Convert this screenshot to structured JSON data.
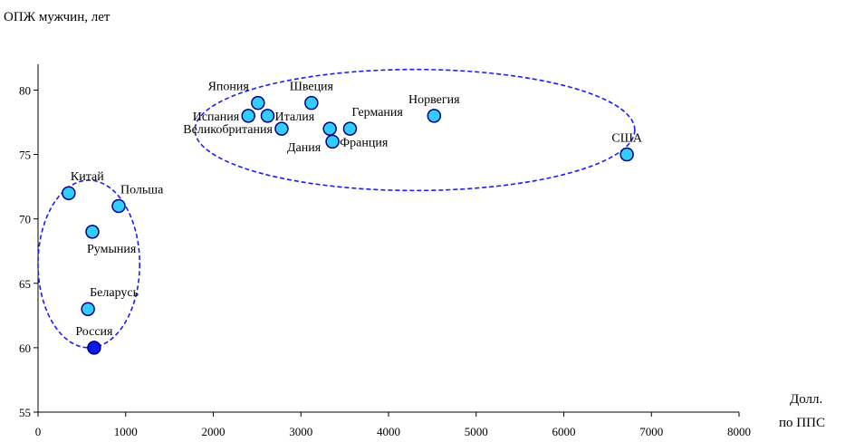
{
  "chart_data": {
    "type": "scatter",
    "title": "",
    "ylabel": "ОПЖ мужчин, лет",
    "xlabel_lines": [
      "Долл.",
      "по ППС"
    ],
    "xlim": [
      0,
      8000
    ],
    "ylim": [
      55,
      82
    ],
    "xticks": [
      0,
      1000,
      2000,
      3000,
      4000,
      5000,
      6000,
      7000,
      8000
    ],
    "yticks": [
      55,
      60,
      65,
      70,
      75,
      80
    ],
    "grid": false,
    "legend": "none",
    "colors": {
      "point_fill": "#33ccff",
      "highlight_fill": "#0a1be6",
      "point_stroke": "#00007a",
      "ellipse_stroke": "#1a1aff",
      "axis": "#000000"
    },
    "points": [
      {
        "label": "Китай",
        "x": 350,
        "y": 72,
        "label_pos": "above-right"
      },
      {
        "label": "Польша",
        "x": 920,
        "y": 71,
        "label_pos": "above-right"
      },
      {
        "label": "Румыния",
        "x": 620,
        "y": 69,
        "label_pos": "below"
      },
      {
        "label": "Беларусь",
        "x": 570,
        "y": 63,
        "label_pos": "above-right"
      },
      {
        "label": "Россия",
        "x": 640,
        "y": 60,
        "label_pos": "above",
        "highlight": true
      },
      {
        "label": "Япония",
        "x": 2510,
        "y": 79,
        "label_pos": "above-left"
      },
      {
        "label": "Испания",
        "x": 2400,
        "y": 78,
        "label_pos": "left"
      },
      {
        "label": "Италия",
        "x": 2620,
        "y": 78,
        "label_pos": "right"
      },
      {
        "label": "Великобритания",
        "x": 2780,
        "y": 77,
        "label_pos": "left"
      },
      {
        "label": "Швеция",
        "x": 3120,
        "y": 79,
        "label_pos": "above"
      },
      {
        "label": "Германия",
        "x": 3560,
        "y": 77,
        "label_pos": "above-right"
      },
      {
        "label": "Дания",
        "x": 3330,
        "y": 77,
        "label_pos": "none"
      },
      {
        "label": "Франция",
        "x": 3360,
        "y": 76,
        "label_pos": "right"
      },
      {
        "label": "Норвегия",
        "x": 4520,
        "y": 78,
        "label_pos": "above"
      },
      {
        "label": "США",
        "x": 6720,
        "y": 75,
        "label_pos": "above"
      }
    ],
    "extra_labels": [
      {
        "text": "Дания",
        "x": 2780,
        "y": 75.6
      }
    ],
    "ellipses": [
      {
        "cx": 580,
        "cy": 66.5,
        "rx": 580,
        "ry": 6.5
      },
      {
        "cx": 4300,
        "cy": 76.9,
        "rx": 2510,
        "ry": 4.7
      }
    ]
  }
}
